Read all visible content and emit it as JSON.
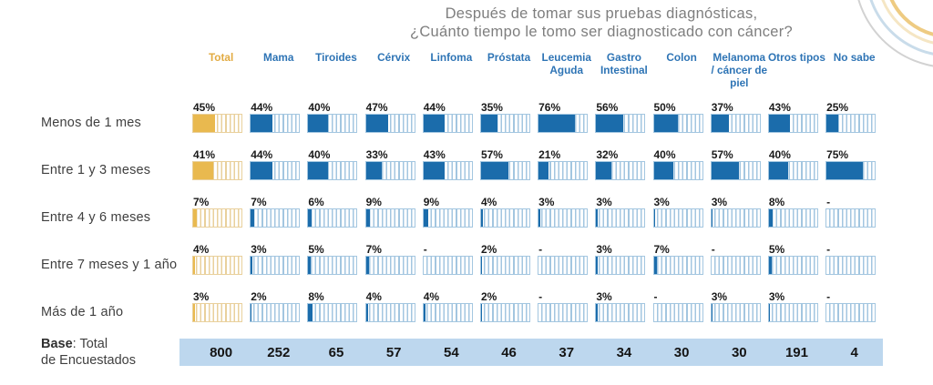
{
  "title": {
    "line1": "Después de tomar sus pruebas diagnósticas,",
    "line2": "¿Cuánto tiempo le tomo ser diagnosticado con cáncer?"
  },
  "base_label": {
    "bold": "Base",
    "rest": ": Total",
    "line2": "de Encuestados"
  },
  "chart_data": {
    "type": "table",
    "title": "Después de tomar sus pruebas diagnósticas, ¿Cuánto tiempo le tomo ser diagnosticado con cáncer?",
    "value_format": "percent",
    "null_display": "-",
    "columns": [
      "Total",
      "Mama",
      "Tiroides",
      "Cérvix",
      "Linfoma",
      "Próstata",
      "Leucemia Aguda",
      "Gastro Intestinal",
      "Colon",
      "Melanoma / cáncer de piel",
      "Otros tipos",
      "No sabe"
    ],
    "rows": [
      {
        "label": "Menos de 1 mes",
        "values": [
          45,
          44,
          40,
          47,
          44,
          35,
          76,
          56,
          50,
          37,
          43,
          25
        ]
      },
      {
        "label": "Entre 1 y 3 meses",
        "values": [
          41,
          44,
          40,
          33,
          43,
          57,
          21,
          32,
          40,
          57,
          40,
          75
        ]
      },
      {
        "label": "Entre 4 y 6 meses",
        "values": [
          7,
          7,
          6,
          9,
          9,
          4,
          3,
          3,
          3,
          3,
          8,
          null
        ]
      },
      {
        "label": "Entre 7 meses y 1 año",
        "values": [
          4,
          3,
          5,
          7,
          null,
          2,
          null,
          3,
          7,
          null,
          5,
          null
        ]
      },
      {
        "label": "Más de 1 año",
        "values": [
          3,
          2,
          8,
          4,
          4,
          2,
          null,
          3,
          null,
          3,
          3,
          null
        ]
      }
    ],
    "base": {
      "label": "Base: Total de Encuestados",
      "values": [
        800,
        252,
        65,
        57,
        54,
        46,
        37,
        34,
        30,
        30,
        191,
        4
      ]
    },
    "legend_position": "none",
    "grid": false
  },
  "colors": {
    "header_blue": "#2e74b5",
    "header_gold": "#e2ab42",
    "bar_blue": "#1b6cab",
    "bar_blue_stripe": "#a3c6e0",
    "bar_gold": "#e9b94f",
    "bar_gold_stripe": "#e9d09c",
    "title_gray": "#7e7e7e",
    "base_band": "#bdd7ee"
  }
}
